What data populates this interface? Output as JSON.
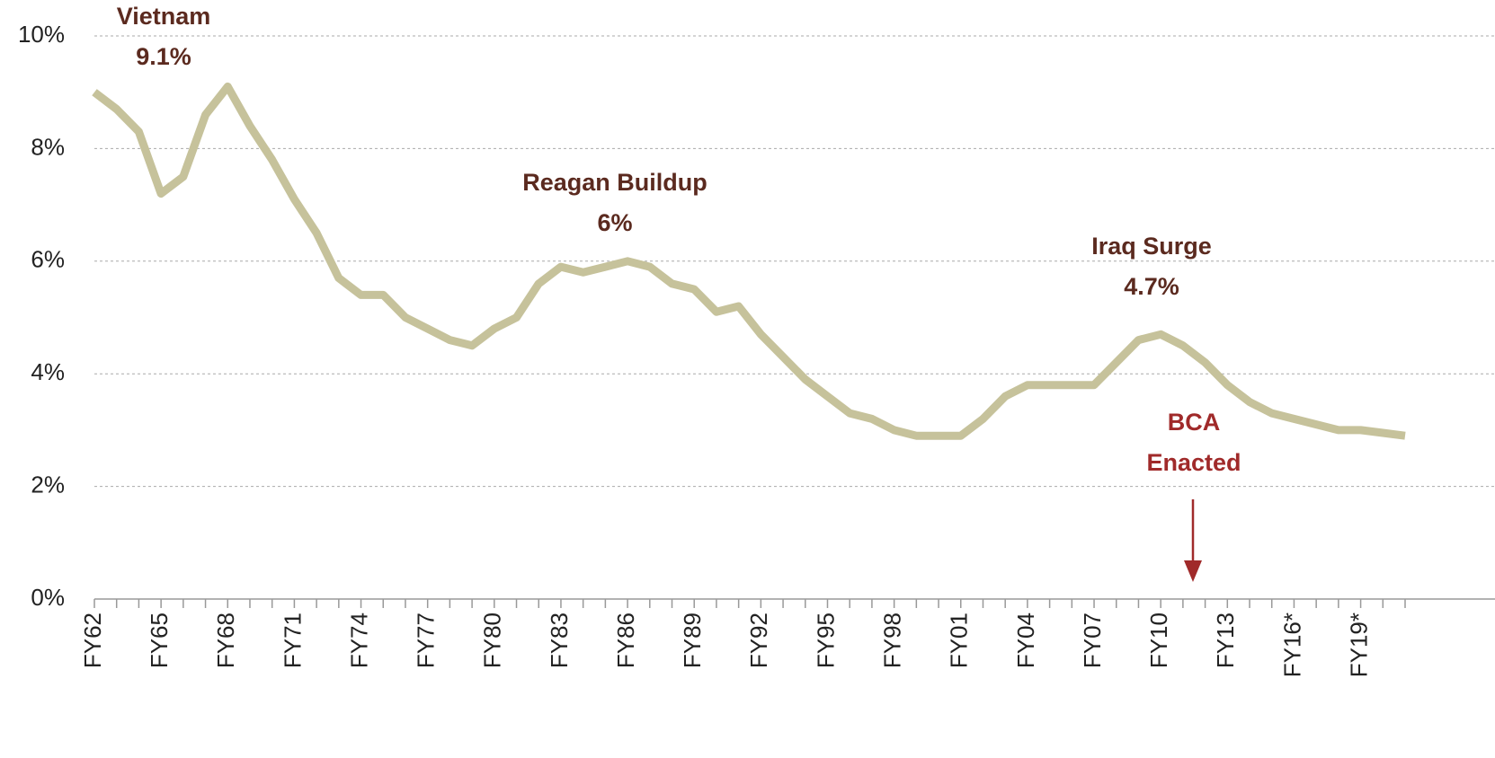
{
  "chart_data": {
    "type": "line",
    "categories": [
      "FY62",
      null,
      null,
      "FY65",
      null,
      null,
      "FY68",
      null,
      null,
      "FY71",
      null,
      null,
      "FY74",
      null,
      null,
      "FY77",
      null,
      null,
      "FY80",
      null,
      null,
      "FY83",
      null,
      null,
      "FY86",
      null,
      null,
      "FY89",
      null,
      null,
      "FY92",
      null,
      null,
      "FY95",
      null,
      null,
      "FY98",
      null,
      null,
      "FY01",
      null,
      null,
      "FY04",
      null,
      null,
      "FY07",
      null,
      null,
      "FY10",
      null,
      null,
      "FY13",
      null,
      null,
      "FY16*",
      null,
      null,
      "FY19*",
      null,
      null
    ],
    "values": [
      9.0,
      8.7,
      8.3,
      7.2,
      7.5,
      8.6,
      9.1,
      8.4,
      7.8,
      7.1,
      6.5,
      5.7,
      5.4,
      5.4,
      5.0,
      4.8,
      4.6,
      4.5,
      4.8,
      5.0,
      5.6,
      5.9,
      5.8,
      5.9,
      6.0,
      5.9,
      5.6,
      5.5,
      5.1,
      5.2,
      4.7,
      4.3,
      3.9,
      3.6,
      3.3,
      3.2,
      3.0,
      2.9,
      2.9,
      2.9,
      3.2,
      3.6,
      3.8,
      3.8,
      3.8,
      3.8,
      4.2,
      4.6,
      4.7,
      4.5,
      4.2,
      3.8,
      3.5,
      3.3,
      3.2,
      3.1,
      3.0,
      3.0,
      2.95,
      2.9
    ],
    "color": "#c6c29b",
    "ylim": [
      0,
      10
    ],
    "yticks": [
      {
        "value": 0,
        "label": "0%"
      },
      {
        "value": 2,
        "label": "2%"
      },
      {
        "value": 4,
        "label": "4%"
      },
      {
        "value": 6,
        "label": "6%"
      },
      {
        "value": 8,
        "label": "8%"
      },
      {
        "value": 10,
        "label": "10%"
      }
    ],
    "grid": true,
    "annotations": [
      {
        "text": [
          "Vietnam",
          "9.1%"
        ],
        "color": "#5b2a1f"
      },
      {
        "text": [
          "Reagan Buildup",
          "6%"
        ],
        "color": "#5b2a1f"
      },
      {
        "text": [
          "Iraq Surge",
          "4.7%"
        ],
        "color": "#5b2a1f"
      },
      {
        "text": [
          "BCA",
          "Enacted"
        ],
        "color": "#a02a2a"
      }
    ]
  }
}
